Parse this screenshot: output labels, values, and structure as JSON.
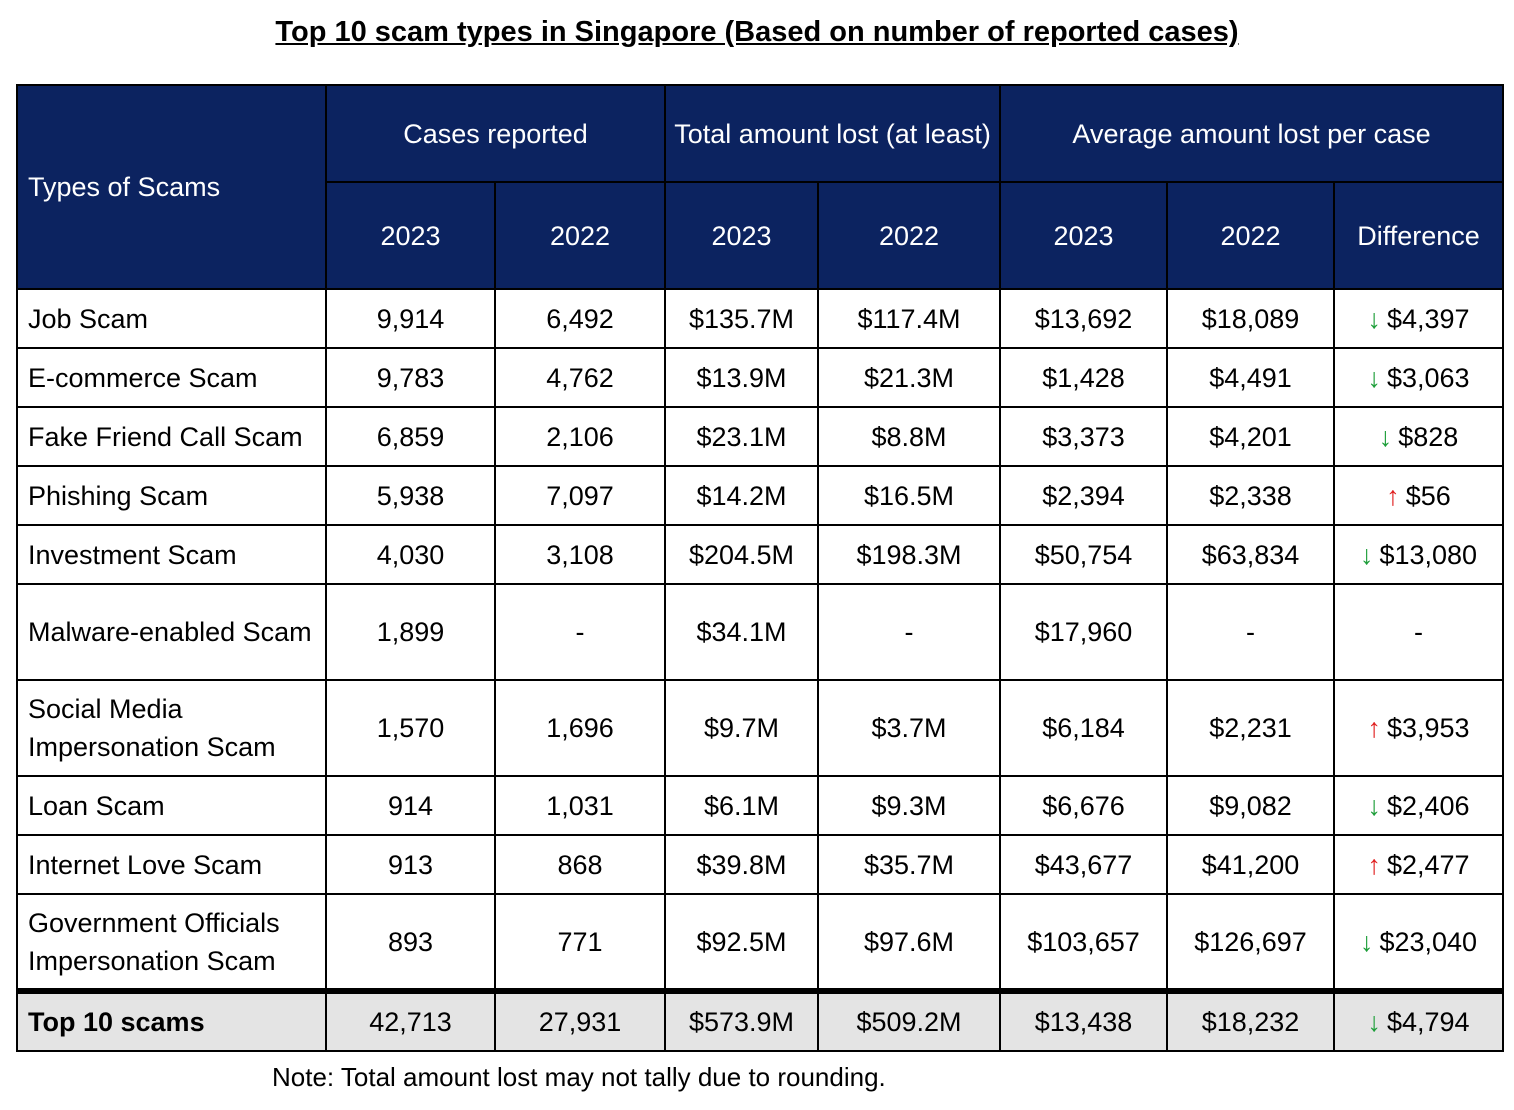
{
  "title": "Top 10 scam types in Singapore (Based on number of reported cases)",
  "headers": {
    "types": "Types of Scams",
    "cases": "Cases reported",
    "total_lost": "Total amount lost (at least)",
    "average": "Average amount lost per case",
    "y2023": "2023",
    "y2022": "2022",
    "difference": "Difference"
  },
  "rows": [
    {
      "name": "Job Scam",
      "c23": "9,914",
      "c22": "6,492",
      "t23": "$135.7M",
      "t22": "$117.4M",
      "a23": "$13,692",
      "a22": "$18,089",
      "dir": "down",
      "diff": "$4,397"
    },
    {
      "name": "E-commerce Scam",
      "c23": "9,783",
      "c22": "4,762",
      "t23": "$13.9M",
      "t22": "$21.3M",
      "a23": "$1,428",
      "a22": "$4,491",
      "dir": "down",
      "diff": "$3,063"
    },
    {
      "name": "Fake Friend Call Scam",
      "c23": "6,859",
      "c22": "2,106",
      "t23": "$23.1M",
      "t22": "$8.8M",
      "a23": "$3,373",
      "a22": "$4,201",
      "dir": "down",
      "diff": "$828"
    },
    {
      "name": "Phishing Scam",
      "c23": "5,938",
      "c22": "7,097",
      "t23": "$14.2M",
      "t22": "$16.5M",
      "a23": "$2,394",
      "a22": "$2,338",
      "dir": "up",
      "diff": "$56"
    },
    {
      "name": "Investment Scam",
      "c23": "4,030",
      "c22": "3,108",
      "t23": "$204.5M",
      "t22": "$198.3M",
      "a23": "$50,754",
      "a22": "$63,834",
      "dir": "down",
      "diff": "$13,080"
    },
    {
      "name": "Malware-enabled Scam",
      "c23": "1,899",
      "c22": "-",
      "t23": "$34.1M",
      "t22": "-",
      "a23": "$17,960",
      "a22": "-",
      "dir": "none",
      "diff": "-"
    },
    {
      "name": "Social Media Impersonation Scam",
      "c23": "1,570",
      "c22": "1,696",
      "t23": "$9.7M",
      "t22": "$3.7M",
      "a23": "$6,184",
      "a22": "$2,231",
      "dir": "up",
      "diff": "$3,953"
    },
    {
      "name": "Loan Scam",
      "c23": "914",
      "c22": "1,031",
      "t23": "$6.1M",
      "t22": "$9.3M",
      "a23": "$6,676",
      "a22": "$9,082",
      "dir": "down",
      "diff": "$2,406"
    },
    {
      "name": "Internet Love Scam",
      "c23": "913",
      "c22": "868",
      "t23": "$39.8M",
      "t22": "$35.7M",
      "a23": "$43,677",
      "a22": "$41,200",
      "dir": "up",
      "diff": "$2,477"
    },
    {
      "name": "Government Officials Impersonation Scam",
      "c23": "893",
      "c22": "771",
      "t23": "$92.5M",
      "t22": "$97.6M",
      "a23": "$103,657",
      "a22": "$126,697",
      "dir": "down",
      "diff": "$23,040"
    }
  ],
  "total": {
    "name": "Top 10 scams",
    "c23": "42,713",
    "c22": "27,931",
    "t23": "$573.9M",
    "t22": "$509.2M",
    "a23": "$13,438",
    "a22": "$18,232",
    "dir": "down",
    "diff": "$4,794"
  },
  "arrows": {
    "down": "↓",
    "up": "↑"
  },
  "note": "Note: Total amount lost may not tally due to rounding."
}
